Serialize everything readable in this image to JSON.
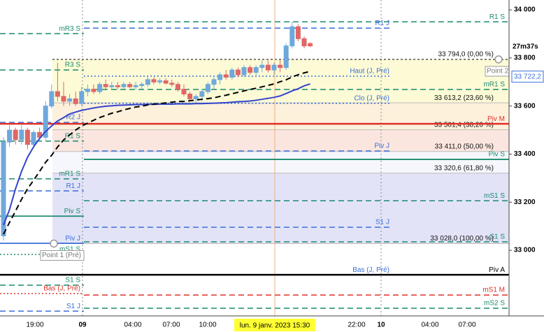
{
  "chart_data": {
    "type": "candlestick",
    "open": [
      33060,
      33450,
      33500,
      33460,
      33500,
      33440,
      33490,
      33470,
      33600,
      33660,
      33640,
      33620,
      33630,
      33610,
      33660,
      33670,
      33660,
      33690,
      33680,
      33685,
      33680,
      33690,
      33680,
      33685,
      33690,
      33710,
      33700,
      33705,
      33695,
      33690,
      33670,
      33650,
      33630,
      33640,
      33660,
      33690,
      33710,
      33730,
      33720,
      33750,
      33730,
      33760,
      33740,
      33760,
      33770,
      33750,
      33770,
      33760,
      33850,
      33930,
      33880,
      33860
    ],
    "high": [
      33470,
      33520,
      33510,
      33520,
      33510,
      33500,
      33510,
      33620,
      33690,
      33780,
      33700,
      33650,
      33660,
      33680,
      33690,
      33690,
      33700,
      33710,
      33700,
      33700,
      33700,
      33700,
      33700,
      33700,
      33720,
      33720,
      33715,
      33715,
      33710,
      33700,
      33690,
      33660,
      33650,
      33670,
      33700,
      33720,
      33740,
      33750,
      33760,
      33760,
      33770,
      33770,
      33770,
      33790,
      33790,
      33780,
      33790,
      33860,
      33950,
      33940,
      33890,
      33865
    ],
    "low": [
      33040,
      33430,
      33440,
      33440,
      33420,
      33430,
      33460,
      33460,
      33590,
      33620,
      33600,
      33600,
      33600,
      33600,
      33640,
      33650,
      33650,
      33670,
      33670,
      33670,
      33670,
      33675,
      33670,
      33670,
      33680,
      33690,
      33690,
      33690,
      33680,
      33660,
      33640,
      33620,
      33610,
      33620,
      33650,
      33670,
      33690,
      33710,
      33710,
      33720,
      33720,
      33730,
      33720,
      33740,
      33740,
      33730,
      33740,
      33750,
      33840,
      33870,
      33840,
      33845
    ],
    "close": [
      33450,
      33500,
      33460,
      33500,
      33440,
      33490,
      33470,
      33600,
      33660,
      33640,
      33620,
      33630,
      33610,
      33660,
      33670,
      33660,
      33690,
      33680,
      33685,
      33680,
      33690,
      33680,
      33685,
      33690,
      33710,
      33700,
      33705,
      33695,
      33690,
      33670,
      33650,
      33630,
      33640,
      33660,
      33690,
      33710,
      33730,
      33720,
      33750,
      33730,
      33760,
      33740,
      33760,
      33770,
      33750,
      33770,
      33760,
      33850,
      33930,
      33880,
      33850,
      33850
    ],
    "up_color": "#6fa8dc",
    "down_color": "#e06666",
    "lines": [
      {
        "color": "#3344cc",
        "dash": "solid",
        "values": [
          33105,
          33169,
          33256,
          33328,
          33387,
          33430,
          33465,
          33494,
          33517,
          33538,
          33552,
          33567,
          33575,
          33582,
          33587,
          33592,
          33596,
          33599,
          33601,
          33603,
          33604,
          33605,
          33606,
          33606,
          33607,
          33607,
          33608,
          33608,
          33608,
          33609,
          33609,
          33609,
          33610,
          33610,
          33611,
          33612,
          33613,
          33614,
          33616,
          33618,
          33619,
          33621,
          33624,
          33628,
          33632,
          33636,
          33642,
          33652,
          33663,
          33672,
          33684,
          33692
        ]
      },
      {
        "color": "#000000",
        "dash": "dashed",
        "values": [
          33067,
          33116,
          33163,
          33212,
          33256,
          33291,
          33328,
          33366,
          33395,
          33430,
          33459,
          33480,
          33500,
          33517,
          33529,
          33541,
          33552,
          33561,
          33570,
          33576,
          33584,
          33590,
          33596,
          33599,
          33605,
          33608,
          33610,
          33613,
          33616,
          33619,
          33619,
          33622,
          33625,
          33628,
          33631,
          33634,
          33640,
          33645,
          33651,
          33657,
          33663,
          33669,
          33674,
          33680,
          33686,
          33692,
          33701,
          33709,
          33721,
          33730,
          33738,
          33744
        ]
      }
    ],
    "ylim": [
      32727,
      34041
    ],
    "yticks": [
      {
        "value": 33000,
        "label": "33 000"
      },
      {
        "value": 33200,
        "label": "33 200"
      },
      {
        "value": 33400,
        "label": "33 400"
      },
      {
        "value": 33600,
        "label": "33 600"
      },
      {
        "value": 33800,
        "label": "33 800"
      },
      {
        "value": 34000,
        "label": "34 000"
      }
    ],
    "x_labels": [
      "19:00",
      "09",
      "04:00",
      "07:00",
      "10:00",
      "22:00",
      "10",
      "04:00",
      "07:00"
    ],
    "cursor_label": "lun. 9 janv. 2023 15:30",
    "timer": "27m37s",
    "price_tag": {
      "value": 33722.2,
      "label": "33 722,2"
    },
    "points": [
      "Point 1 (Pré)",
      "Point 2"
    ],
    "fib": [
      {
        "value": 33794.0,
        "label": "33 794,0 (0,00 %)"
      },
      {
        "value": 33613.2,
        "label": "33 613,2 (23,60 %)"
      },
      {
        "value": 33501.4,
        "label": "33 501,4 (38,20 %)"
      },
      {
        "value": 33411.0,
        "label": "33 411,0 (50,00 %)"
      },
      {
        "value": 33320.6,
        "label": "33 320,6 (61,80 %)"
      },
      {
        "value": 33028.0,
        "label": "33 028,0 (100,00 %)"
      }
    ],
    "fib_colors": [
      "#fdfbd6",
      "#fdf1dc",
      "#fbe6df",
      "#f5f7fc",
      "#e3e3f8"
    ],
    "levels": [
      {
        "label": "R1 S",
        "value": 33950,
        "color": "#1a8a6e",
        "style": "dashed",
        "span": "right"
      },
      {
        "label": "R1 J",
        "value": 33924,
        "color": "#3a6fd8",
        "style": "dashed",
        "span": "day"
      },
      {
        "label": "mR3 S",
        "value": 33901,
        "color": "#1a8a6e",
        "style": "dashed",
        "span": "left"
      },
      {
        "label": "R3 S",
        "value": 33750,
        "color": "#1a8a6e",
        "style": "dashed",
        "span": "left"
      },
      {
        "label": "Haut (J, Pré)",
        "value": 33724,
        "color": "#3a6fd8",
        "style": "dotted",
        "span": "day"
      },
      {
        "label": "mR1 S",
        "value": 33669,
        "color": "#1a8a6e",
        "style": "dashed",
        "span": "right"
      },
      {
        "label": "Clo (J, Pré)",
        "value": 33611,
        "color": "#3a6fd8",
        "style": "dotted",
        "span": "day"
      },
      {
        "label": "R2 J",
        "value": 33532,
        "color": "#3a6fd8",
        "style": "dashed",
        "span": "left"
      },
      {
        "label": "Piv M",
        "value": 33526,
        "color": "#e0302a",
        "style": "solid",
        "span": "full"
      },
      {
        "label": "R1 S",
        "value": 33454,
        "color": "#1a8a6e",
        "style": "dashed",
        "span": "left"
      },
      {
        "label": "Piv J",
        "value": 33413,
        "color": "#3a6fd8",
        "style": "dashed",
        "span": "day"
      },
      {
        "label": "Piv S",
        "value": 33378,
        "color": "#1a8a6e",
        "style": "solid",
        "span": "right"
      },
      {
        "label": "mR1 S",
        "value": 33297,
        "color": "#1a8a6e",
        "style": "dashed",
        "span": "left"
      },
      {
        "label": "R1 J",
        "value": 33247,
        "color": "#3a6fd8",
        "style": "dashed",
        "span": "left"
      },
      {
        "label": "mS1 S",
        "value": 33206,
        "color": "#1a8a6e",
        "style": "dashed",
        "span": "right"
      },
      {
        "label": "Piv S",
        "value": 33142,
        "color": "#1a8a6e",
        "style": "solid",
        "span": "left"
      },
      {
        "label": "S1 J",
        "value": 33096,
        "color": "#3a6fd8",
        "style": "dashed",
        "span": "day"
      },
      {
        "label": "S1 S",
        "value": 33035,
        "color": "#1a8a6e",
        "style": "dashed",
        "span": "right"
      },
      {
        "label": "Piv J",
        "value": 33029,
        "color": "#3a6fd8",
        "style": "solid",
        "span": "left"
      },
      {
        "label": "mS1 S",
        "value": 32983,
        "color": "#1a8a6e",
        "style": "dotted",
        "span": "left"
      },
      {
        "label": "Bas (J, Pré)",
        "value": 32898,
        "color": "#3a6fd8",
        "style": "dotted",
        "span": "day"
      },
      {
        "label": "Piv A",
        "value": 32898,
        "color": "#000000",
        "style": "solid",
        "span": "full"
      },
      {
        "label": "S1 S",
        "value": 32855,
        "color": "#1a8a6e",
        "style": "dashed",
        "span": "left"
      },
      {
        "label": "Bas (J, Pré)",
        "value": 32820,
        "color": "#e0302a",
        "style": "dotted",
        "span": "left"
      },
      {
        "label": "mS1 M",
        "value": 32814,
        "color": "#e0302a",
        "style": "dashed",
        "span": "right"
      },
      {
        "label": "mS2 S",
        "value": 32759,
        "color": "#1a8a6e",
        "style": "dashed",
        "span": "right"
      },
      {
        "label": "S1 J",
        "value": 32747,
        "color": "#3a6fd8",
        "style": "dashed",
        "span": "left"
      }
    ]
  }
}
